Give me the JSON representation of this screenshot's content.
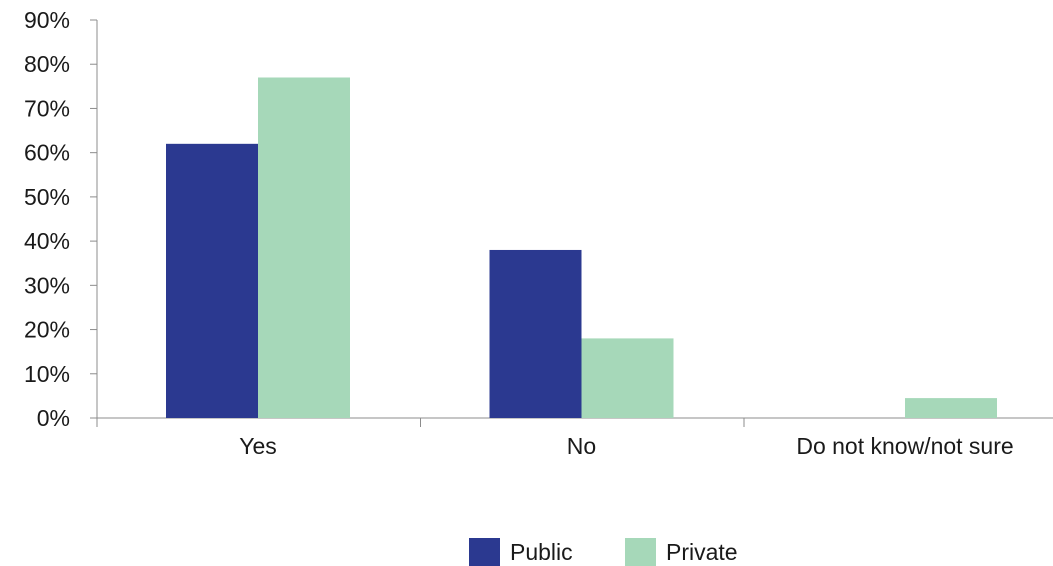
{
  "chart_data": {
    "type": "bar",
    "title": "",
    "xlabel": "",
    "ylabel": "",
    "categories": [
      "Yes",
      "No",
      "Do not know/not sure"
    ],
    "series": [
      {
        "name": "Public",
        "color": "#2b3990",
        "values": [
          62,
          38,
          0
        ]
      },
      {
        "name": "Private",
        "color": "#a6d8b9",
        "values": [
          77,
          18,
          4.5
        ]
      }
    ],
    "ylim": [
      0,
      90
    ],
    "yticks": [
      0,
      10,
      20,
      30,
      40,
      50,
      60,
      70,
      80,
      90
    ],
    "ytick_labels": [
      "0%",
      "10%",
      "20%",
      "30%",
      "40%",
      "50%",
      "60%",
      "70%",
      "80%",
      "90%"
    ],
    "grid": false,
    "legend_position": "bottom-center"
  }
}
